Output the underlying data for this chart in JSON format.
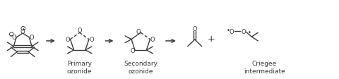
{
  "bg_color": "#ffffff",
  "line_color": "#3a3a3a",
  "text_color": "#3a3a3a",
  "label_primary": "Primary\nozonide",
  "label_secondary": "Secondary\nozonide",
  "label_criegee": "Criegee\nintermediate",
  "label_fontsize": 6.5,
  "figsize": [
    4.8,
    1.13
  ],
  "dpi": 100
}
